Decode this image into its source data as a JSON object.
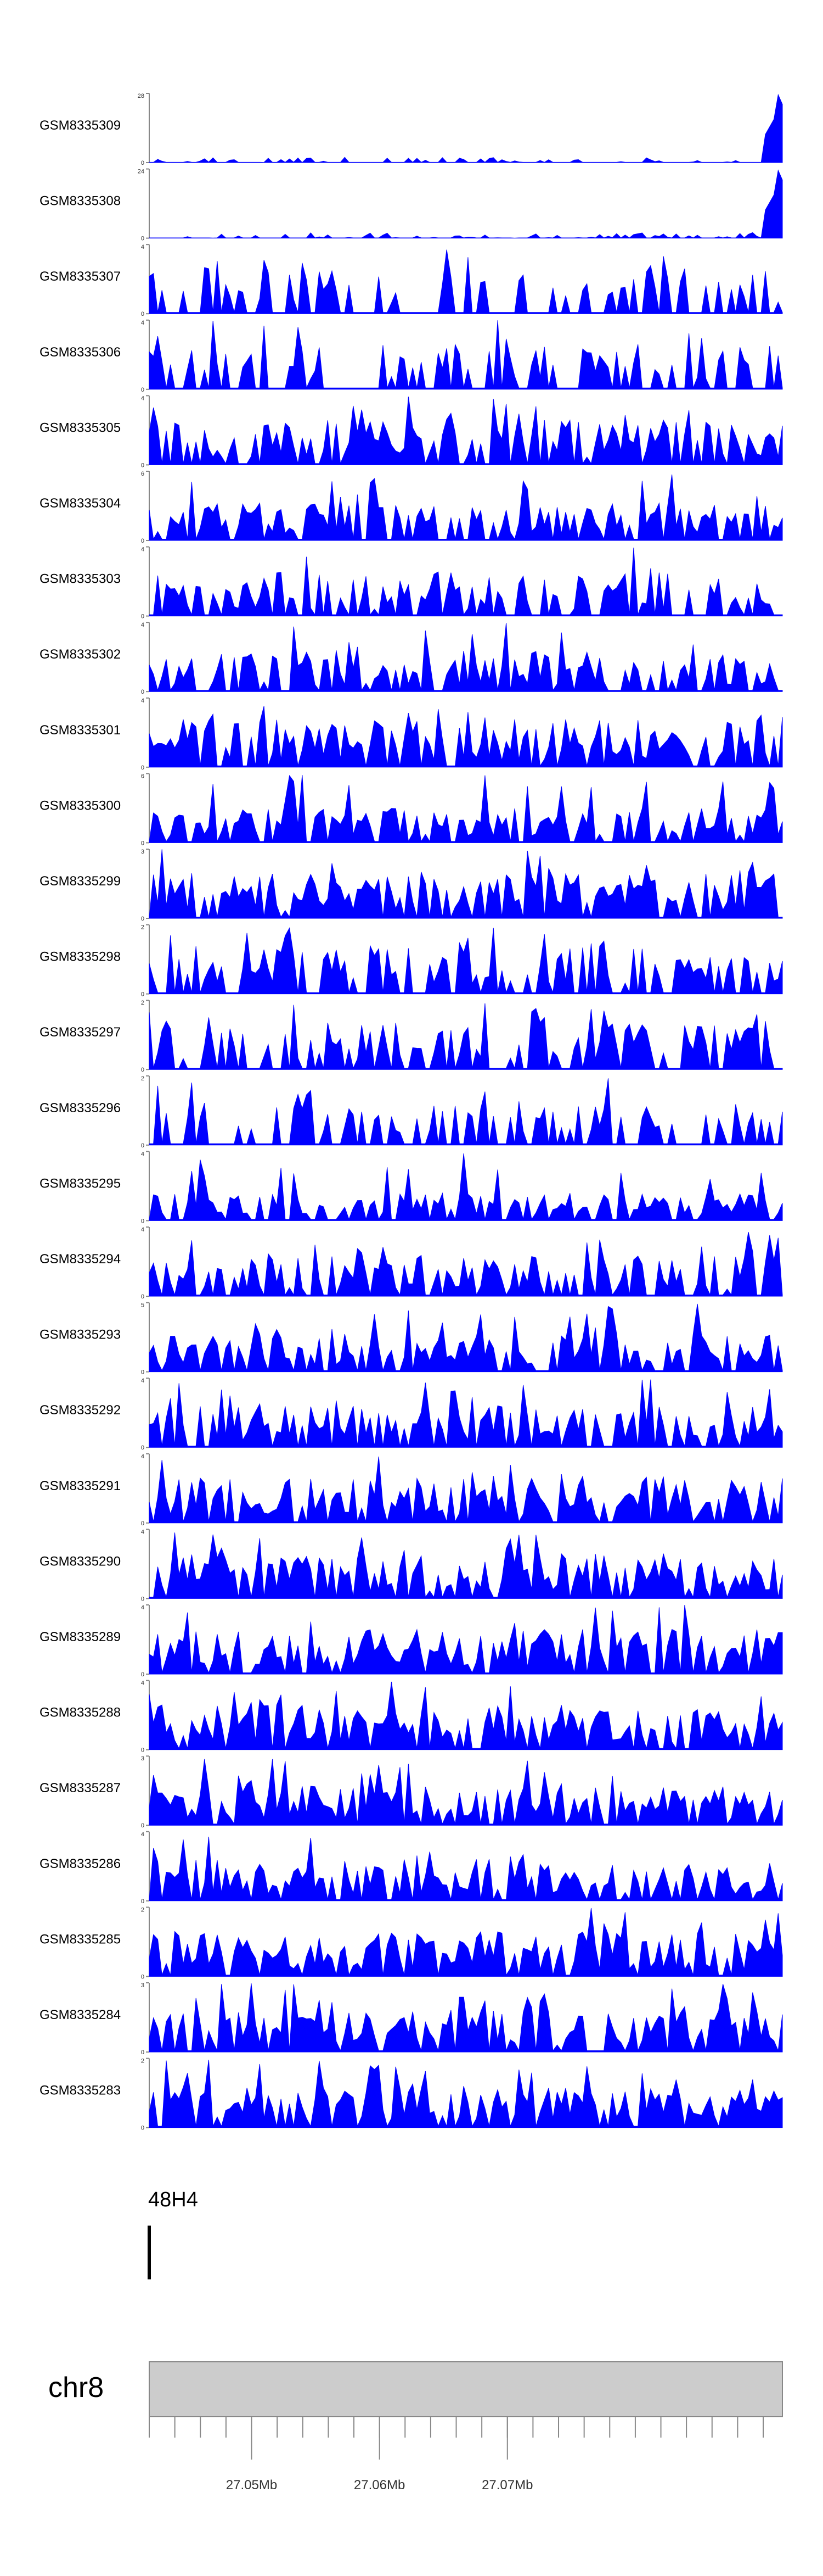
{
  "chart_data": {
    "type": "area",
    "title": "",
    "xlabel": "",
    "ylabel": "",
    "xlim": [
      27.042,
      27.0915
    ],
    "x_unit": "Mb",
    "fill_color": "#0000ff",
    "points_per_track": 150,
    "tracks": [
      {
        "name": "GSM8335309",
        "ymax": "28",
        "ylim": [
          0,
          28
        ],
        "profile": "spike",
        "seed": 1,
        "base": 0.08,
        "density": 0.35
      },
      {
        "name": "GSM8335308",
        "ymax": "24",
        "ylim": [
          0,
          24
        ],
        "profile": "spike",
        "seed": 2,
        "base": 0.08,
        "density": 0.35
      },
      {
        "name": "GSM8335307",
        "ymax": "4",
        "ylim": [
          0,
          4
        ],
        "profile": "sparse",
        "seed": 3,
        "base": 0.55,
        "density": 0.32
      },
      {
        "name": "GSM8335306",
        "ymax": "4",
        "ylim": [
          0,
          4
        ],
        "profile": "sparse",
        "seed": 4,
        "base": 0.5,
        "density": 0.38
      },
      {
        "name": "GSM8335305",
        "ymax": "4",
        "ylim": [
          0,
          4
        ],
        "profile": "dense",
        "seed": 5,
        "base": 0.55,
        "density": 0.78
      },
      {
        "name": "GSM8335304",
        "ymax": "6",
        "ylim": [
          0,
          6
        ],
        "profile": "dense",
        "seed": 6,
        "base": 0.45,
        "density": 0.7
      },
      {
        "name": "GSM8335303",
        "ymax": "4",
        "ylim": [
          0,
          4
        ],
        "profile": "dense",
        "seed": 7,
        "base": 0.55,
        "density": 0.6
      },
      {
        "name": "GSM8335302",
        "ymax": "4",
        "ylim": [
          0,
          4
        ],
        "profile": "dense",
        "seed": 8,
        "base": 0.5,
        "density": 0.62
      },
      {
        "name": "GSM8335301",
        "ymax": "4",
        "ylim": [
          0,
          4
        ],
        "profile": "dense",
        "seed": 9,
        "base": 0.6,
        "density": 0.8
      },
      {
        "name": "GSM8335300",
        "ymax": "6",
        "ylim": [
          0,
          6
        ],
        "profile": "dense",
        "seed": 10,
        "base": 0.4,
        "density": 0.68
      },
      {
        "name": "GSM8335299",
        "ymax": "3",
        "ylim": [
          0,
          3
        ],
        "profile": "dense",
        "seed": 11,
        "base": 0.6,
        "density": 0.8
      },
      {
        "name": "GSM8335298",
        "ymax": "2",
        "ylim": [
          0,
          2
        ],
        "profile": "sparse",
        "seed": 12,
        "base": 0.55,
        "density": 0.5
      },
      {
        "name": "GSM8335297",
        "ymax": "2",
        "ylim": [
          0,
          2
        ],
        "profile": "sparse",
        "seed": 13,
        "base": 0.55,
        "density": 0.55
      },
      {
        "name": "GSM8335296",
        "ymax": "2",
        "ylim": [
          0,
          2
        ],
        "profile": "sparse",
        "seed": 14,
        "base": 0.5,
        "density": 0.4
      },
      {
        "name": "GSM8335295",
        "ymax": "4",
        "ylim": [
          0,
          4
        ],
        "profile": "dense",
        "seed": 15,
        "base": 0.3,
        "density": 0.7
      },
      {
        "name": "GSM8335294",
        "ymax": "4",
        "ylim": [
          0,
          4
        ],
        "profile": "dense",
        "seed": 16,
        "base": 0.5,
        "density": 0.65
      },
      {
        "name": "GSM8335293",
        "ymax": "5",
        "ylim": [
          0,
          5
        ],
        "profile": "dense",
        "seed": 17,
        "base": 0.45,
        "density": 0.75
      },
      {
        "name": "GSM8335292",
        "ymax": "4",
        "ylim": [
          0,
          4
        ],
        "profile": "dense",
        "seed": 18,
        "base": 0.5,
        "density": 0.72
      },
      {
        "name": "GSM8335291",
        "ymax": "4",
        "ylim": [
          0,
          4
        ],
        "profile": "dense",
        "seed": 19,
        "base": 0.55,
        "density": 0.78
      },
      {
        "name": "GSM8335290",
        "ymax": "4",
        "ylim": [
          0,
          4
        ],
        "profile": "dense",
        "seed": 20,
        "base": 0.55,
        "density": 0.78
      },
      {
        "name": "GSM8335289",
        "ymax": "4",
        "ylim": [
          0,
          4
        ],
        "profile": "dense",
        "seed": 21,
        "base": 0.55,
        "density": 0.8
      },
      {
        "name": "GSM8335288",
        "ymax": "4",
        "ylim": [
          0,
          4
        ],
        "profile": "dense",
        "seed": 22,
        "base": 0.55,
        "density": 0.72
      },
      {
        "name": "GSM8335287",
        "ymax": "3",
        "ylim": [
          0,
          3
        ],
        "profile": "dense",
        "seed": 23,
        "base": 0.5,
        "density": 0.82
      },
      {
        "name": "GSM8335286",
        "ymax": "4",
        "ylim": [
          0,
          4
        ],
        "profile": "dense",
        "seed": 24,
        "base": 0.5,
        "density": 0.75
      },
      {
        "name": "GSM8335285",
        "ymax": "2",
        "ylim": [
          0,
          2
        ],
        "profile": "dense",
        "seed": 25,
        "base": 0.55,
        "density": 0.8
      },
      {
        "name": "GSM8335284",
        "ymax": "3",
        "ylim": [
          0,
          3
        ],
        "profile": "dense",
        "seed": 26,
        "base": 0.5,
        "density": 0.72
      },
      {
        "name": "GSM8335283",
        "ymax": "2",
        "ylim": [
          0,
          2
        ],
        "profile": "dense",
        "seed": 27,
        "base": 0.5,
        "density": 0.8
      }
    ],
    "feature": {
      "label": "48H4",
      "position_mb": 27.042
    },
    "ideogram": {
      "chromosome": "chr8"
    },
    "axis": {
      "major_ticks": [
        {
          "label": "27.05Mb",
          "value": 27.05
        },
        {
          "label": "27.06Mb",
          "value": 27.06
        },
        {
          "label": "27.07Mb",
          "value": 27.07
        }
      ],
      "minor_step": 0.002
    }
  }
}
